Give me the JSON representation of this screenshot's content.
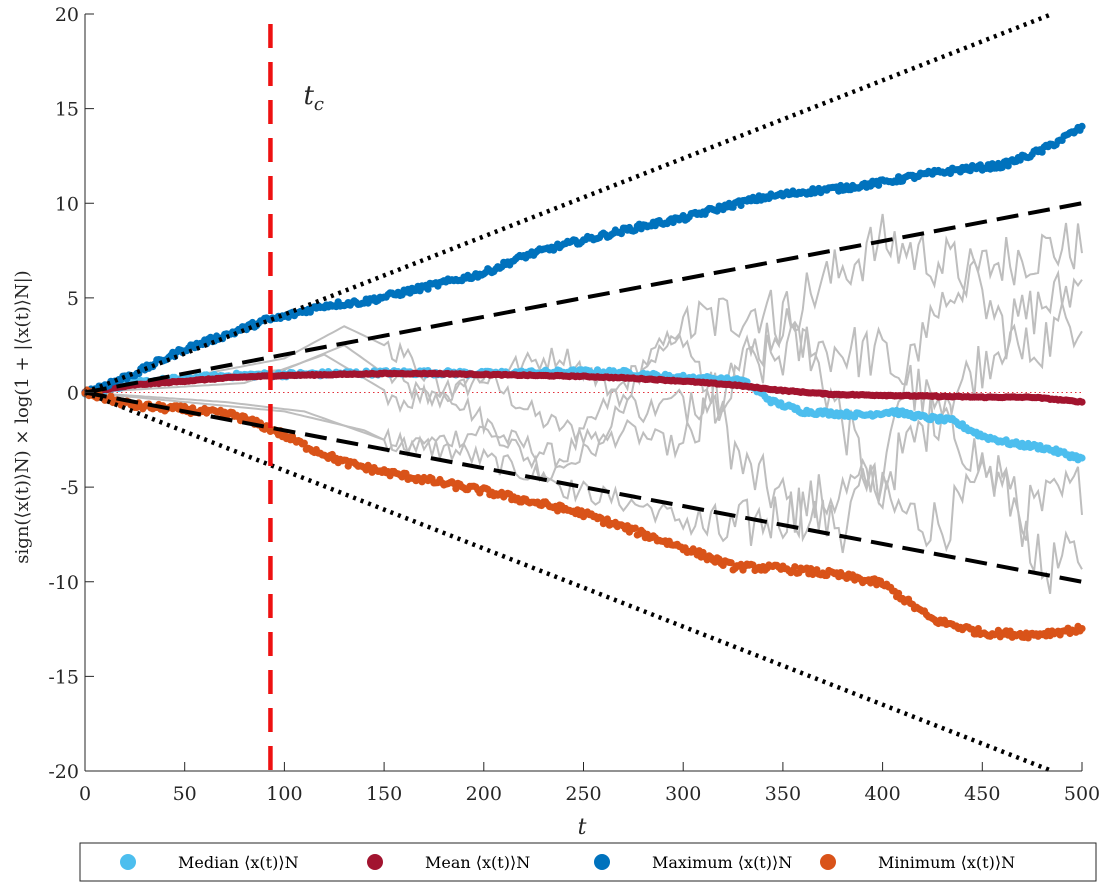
{
  "chart_data": {
    "type": "scatter",
    "xlabel": "t",
    "ylabel": "sign(⟨x(t)⟩N) × log(1 + |⟨x(t)⟩N|)",
    "xlim": [
      0,
      500
    ],
    "ylim": [
      -20,
      20
    ],
    "xticks": [
      "0",
      "50",
      "100",
      "150",
      "200",
      "250",
      "300",
      "350",
      "400",
      "450",
      "500"
    ],
    "yticks": [
      "20",
      "15",
      "10",
      "5",
      "0",
      "-5",
      "-10",
      "-15",
      "-20"
    ],
    "grid": false,
    "legend_position": "bottom",
    "annotation": {
      "text": "t",
      "subscript": "c",
      "x": 93
    },
    "series": [
      {
        "name": "Median ⟨x(t)⟩N",
        "color": "#4DBEEE",
        "points": [
          [
            0,
            0
          ],
          [
            25,
            0.5
          ],
          [
            50,
            0.75
          ],
          [
            75,
            0.9
          ],
          [
            100,
            0.95
          ],
          [
            125,
            1.0
          ],
          [
            150,
            1.05
          ],
          [
            175,
            1.05
          ],
          [
            200,
            1.0
          ],
          [
            225,
            1.05
          ],
          [
            250,
            1.1
          ],
          [
            270,
            1.05
          ],
          [
            290,
            0.85
          ],
          [
            310,
            0.75
          ],
          [
            330,
            0.6
          ],
          [
            345,
            -0.5
          ],
          [
            360,
            -1.0
          ],
          [
            375,
            -1.1
          ],
          [
            390,
            -1.2
          ],
          [
            405,
            -1.0
          ],
          [
            420,
            -1.3
          ],
          [
            435,
            -1.5
          ],
          [
            450,
            -2.3
          ],
          [
            465,
            -2.7
          ],
          [
            480,
            -2.9
          ],
          [
            500,
            -3.5
          ]
        ]
      },
      {
        "name": "Mean ⟨x(t)⟩N",
        "color": "#A2142F",
        "points": [
          [
            0,
            0
          ],
          [
            25,
            0.4
          ],
          [
            50,
            0.6
          ],
          [
            75,
            0.8
          ],
          [
            100,
            0.9
          ],
          [
            125,
            0.95
          ],
          [
            150,
            1.0
          ],
          [
            175,
            1.0
          ],
          [
            200,
            0.95
          ],
          [
            225,
            0.9
          ],
          [
            250,
            0.85
          ],
          [
            275,
            0.75
          ],
          [
            300,
            0.6
          ],
          [
            325,
            0.4
          ],
          [
            350,
            0.1
          ],
          [
            375,
            -0.1
          ],
          [
            400,
            -0.15
          ],
          [
            425,
            -0.2
          ],
          [
            450,
            -0.25
          ],
          [
            475,
            -0.25
          ],
          [
            500,
            -0.5
          ]
        ]
      },
      {
        "name": "Maximum ⟨x(t)⟩N",
        "color": "#0072BD",
        "points": [
          [
            0,
            0
          ],
          [
            25,
            1.0
          ],
          [
            50,
            2.3
          ],
          [
            75,
            3.2
          ],
          [
            90,
            3.8
          ],
          [
            100,
            4.0
          ],
          [
            120,
            4.6
          ],
          [
            140,
            4.8
          ],
          [
            160,
            5.3
          ],
          [
            180,
            5.8
          ],
          [
            200,
            6.3
          ],
          [
            220,
            7.2
          ],
          [
            240,
            7.8
          ],
          [
            260,
            8.3
          ],
          [
            280,
            8.8
          ],
          [
            300,
            9.2
          ],
          [
            320,
            9.8
          ],
          [
            340,
            10.3
          ],
          [
            360,
            10.6
          ],
          [
            380,
            10.8
          ],
          [
            400,
            11.1
          ],
          [
            420,
            11.5
          ],
          [
            440,
            11.8
          ],
          [
            460,
            12.0
          ],
          [
            480,
            12.8
          ],
          [
            500,
            14.0
          ]
        ]
      },
      {
        "name": "Minimum ⟨x(t)⟩N",
        "color": "#D95319",
        "points": [
          [
            0,
            0
          ],
          [
            25,
            -0.7
          ],
          [
            50,
            -0.9
          ],
          [
            75,
            -1.2
          ],
          [
            95,
            -2.0
          ],
          [
            110,
            -2.8
          ],
          [
            130,
            -3.7
          ],
          [
            150,
            -4.2
          ],
          [
            175,
            -4.7
          ],
          [
            200,
            -5.2
          ],
          [
            225,
            -5.8
          ],
          [
            250,
            -6.4
          ],
          [
            275,
            -7.3
          ],
          [
            300,
            -8.2
          ],
          [
            325,
            -9.2
          ],
          [
            350,
            -9.3
          ],
          [
            375,
            -9.6
          ],
          [
            400,
            -10.1
          ],
          [
            425,
            -12.0
          ],
          [
            450,
            -12.7
          ],
          [
            475,
            -12.8
          ],
          [
            500,
            -12.5
          ]
        ]
      },
      {
        "name": "",
        "color": "#000000",
        "style": "dotted",
        "points": [
          [
            0,
            0
          ],
          [
            485,
            20
          ]
        ]
      },
      {
        "name": "",
        "color": "#000000",
        "style": "dotted",
        "points": [
          [
            0,
            0
          ],
          [
            485,
            -20
          ]
        ]
      },
      {
        "name": "",
        "color": "#000000",
        "style": "dashed",
        "points": [
          [
            0,
            0
          ],
          [
            500,
            10
          ]
        ]
      },
      {
        "name": "",
        "color": "#000000",
        "style": "dashed",
        "points": [
          [
            0,
            0
          ],
          [
            500,
            -10
          ]
        ]
      },
      {
        "name": "",
        "color": "#BEBEBE",
        "style": "solid",
        "points": [
          [
            0,
            0
          ],
          [
            50,
            0.8
          ],
          [
            100,
            1.2
          ],
          [
            130,
            2.5
          ],
          [
            150,
            1.0
          ],
          [
            175,
            -0.5
          ],
          [
            200,
            0.8
          ],
          [
            230,
            -1.5
          ],
          [
            260,
            -2.5
          ],
          [
            280,
            1.5
          ],
          [
            300,
            3.0
          ],
          [
            330,
            -4.0
          ],
          [
            360,
            -6.5
          ],
          [
            380,
            -7.0
          ],
          [
            400,
            -4.0
          ],
          [
            420,
            3.5
          ],
          [
            440,
            6.0
          ],
          [
            460,
            7.0
          ],
          [
            480,
            7.5
          ],
          [
            500,
            7.8
          ]
        ]
      },
      {
        "name": "",
        "color": "#BEBEBE",
        "style": "solid",
        "points": [
          [
            0,
            0
          ],
          [
            50,
            -0.5
          ],
          [
            100,
            -1.0
          ],
          [
            140,
            -2.0
          ],
          [
            160,
            -3.0
          ],
          [
            200,
            -2.0
          ],
          [
            240,
            -3.5
          ],
          [
            270,
            0.5
          ],
          [
            300,
            3.5
          ],
          [
            340,
            4.5
          ],
          [
            360,
            3.0
          ],
          [
            400,
            -6.0
          ],
          [
            430,
            -7.0
          ],
          [
            460,
            -4.0
          ],
          [
            480,
            -9.5
          ],
          [
            500,
            -8.5
          ]
        ]
      },
      {
        "name": "",
        "color": "#BEBEBE",
        "style": "solid",
        "points": [
          [
            0,
            0
          ],
          [
            60,
            1.0
          ],
          [
            100,
            1.8
          ],
          [
            130,
            3.5
          ],
          [
            160,
            2.0
          ],
          [
            200,
            -1.5
          ],
          [
            240,
            -5.0
          ],
          [
            280,
            -6.0
          ],
          [
            320,
            -7.5
          ],
          [
            360,
            -6.0
          ],
          [
            400,
            -4.5
          ],
          [
            440,
            0.5
          ],
          [
            470,
            4.0
          ],
          [
            500,
            5.8
          ]
        ]
      },
      {
        "name": "",
        "color": "#BEBEBE",
        "style": "solid",
        "points": [
          [
            0,
            0
          ],
          [
            70,
            -0.5
          ],
          [
            110,
            -1.0
          ],
          [
            150,
            -2.5
          ],
          [
            190,
            -3.2
          ],
          [
            230,
            -4.5
          ],
          [
            270,
            -2.0
          ],
          [
            300,
            -3.0
          ],
          [
            330,
            1.0
          ],
          [
            360,
            2.5
          ],
          [
            400,
            2.0
          ],
          [
            440,
            -2.5
          ],
          [
            470,
            -6.5
          ],
          [
            500,
            -5.0
          ]
        ]
      },
      {
        "name": "",
        "color": "#BEBEBE",
        "style": "solid",
        "points": [
          [
            0,
            0
          ],
          [
            80,
            0.5
          ],
          [
            120,
            2.0
          ],
          [
            160,
            -0.5
          ],
          [
            200,
            1.0
          ],
          [
            240,
            2.0
          ],
          [
            280,
            -1.0
          ],
          [
            320,
            0.5
          ],
          [
            360,
            5.0
          ],
          [
            400,
            8.0
          ],
          [
            440,
            6.5
          ],
          [
            470,
            2.0
          ],
          [
            500,
            4.2
          ]
        ]
      }
    ]
  }
}
